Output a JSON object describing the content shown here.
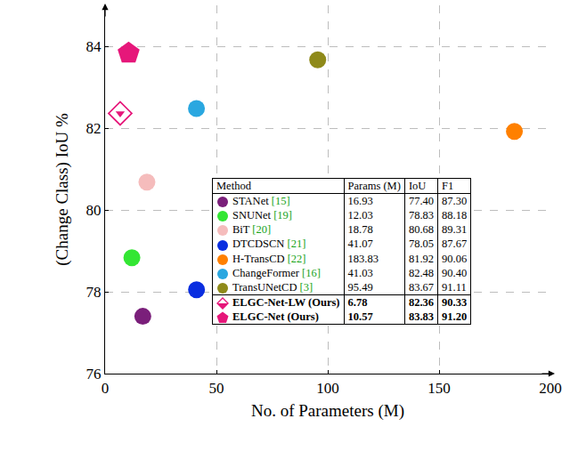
{
  "chart_data": {
    "type": "scatter",
    "x_label": "No. of Parameters (M)",
    "y_label": "(Change Class) IoU %",
    "xlim": [
      0,
      200
    ],
    "ylim": [
      76,
      85
    ],
    "xticks": [
      0,
      50,
      100,
      150,
      200
    ],
    "yticks": [
      76,
      78,
      80,
      82,
      84
    ],
    "grid": true,
    "series": [
      {
        "name": "STANet [15]",
        "color": "#7a1f7a",
        "marker": "circle",
        "x": [
          16.93
        ],
        "values": [
          77.4
        ]
      },
      {
        "name": "SNUNet [19]",
        "color": "#33e633",
        "marker": "circle",
        "x": [
          12.03
        ],
        "values": [
          78.83
        ]
      },
      {
        "name": "BiT [20]",
        "color": "#f5bcbc",
        "marker": "circle",
        "x": [
          18.78
        ],
        "values": [
          80.68
        ]
      },
      {
        "name": "DTCDSCN [21]",
        "color": "#0a2ee0",
        "marker": "circle",
        "x": [
          41.07
        ],
        "values": [
          78.05
        ]
      },
      {
        "name": "H-TransCD [22]",
        "color": "#ff8000",
        "marker": "circle",
        "x": [
          183.83
        ],
        "values": [
          81.92
        ]
      },
      {
        "name": "ChangeFormer [16]",
        "color": "#2aa7e0",
        "marker": "circle",
        "x": [
          41.03
        ],
        "values": [
          82.48
        ]
      },
      {
        "name": "TransUNetCD [3]",
        "color": "#8f8a1a",
        "marker": "circle",
        "x": [
          95.49
        ],
        "values": [
          83.67
        ]
      },
      {
        "name": "ELGC-Net-LW (Ours)",
        "color": "#e6177a",
        "marker": "diamond-half",
        "x": [
          6.78
        ],
        "values": [
          82.36
        ]
      },
      {
        "name": "ELGC-Net (Ours)",
        "color": "#e6177a",
        "marker": "pentagon",
        "x": [
          10.57
        ],
        "values": [
          83.83
        ]
      }
    ],
    "table": {
      "columns": [
        "Method",
        "Params (M)",
        "IoU",
        "F1"
      ],
      "rows": [
        [
          "STANet [15]",
          "16.93",
          "77.40",
          "87.30"
        ],
        [
          "SNUNet [19]",
          "12.03",
          "78.83",
          "88.18"
        ],
        [
          "BiT [20]",
          "18.78",
          "80.68",
          "89.31"
        ],
        [
          "DTCDSCN [21]",
          "41.07",
          "78.05",
          "87.67"
        ],
        [
          "H-TransCD [22]",
          "183.83",
          "81.92",
          "90.06"
        ],
        [
          "ChangeFormer [16]",
          "41.03",
          "82.48",
          "90.40"
        ],
        [
          "TransUNetCD [3]",
          "95.49",
          "83.67",
          "91.11"
        ],
        [
          "ELGC-Net-LW (Ours)",
          "6.78",
          "82.36",
          "90.33"
        ],
        [
          "ELGC-Net (Ours)",
          "10.57",
          "83.83",
          "91.20"
        ]
      ]
    }
  }
}
